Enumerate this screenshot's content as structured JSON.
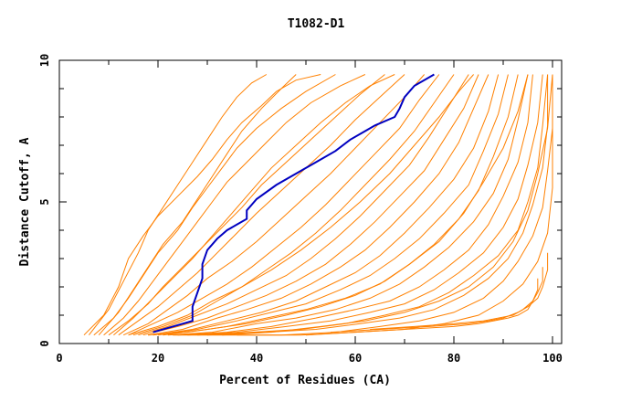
{
  "chart_data": {
    "type": "line",
    "title": "T1082-D1",
    "xlabel": "Percent of Residues (CA)",
    "ylabel": "Distance Cutoff, A",
    "xlim": [
      0,
      100
    ],
    "ylim": [
      0,
      10
    ],
    "x_ticks": [
      "0",
      "20",
      "40",
      "60",
      "80",
      "100"
    ],
    "y_ticks": [
      "0",
      "5",
      "10"
    ],
    "grid": false,
    "colors": {
      "background_series": "#ff8000",
      "highlight_series": "#0000c0",
      "axes": "#000000"
    },
    "series": [
      {
        "role": "highlight",
        "x": [
          19,
          23,
          27,
          27,
          28,
          29,
          29,
          30,
          32,
          34,
          36,
          38,
          38,
          39,
          40,
          44,
          48,
          52,
          56,
          59,
          62,
          64,
          68,
          69,
          70,
          72,
          76
        ],
        "y": [
          0.4,
          0.6,
          0.8,
          1.3,
          1.8,
          2.3,
          2.8,
          3.3,
          3.7,
          4.0,
          4.2,
          4.4,
          4.7,
          4.9,
          5.1,
          5.6,
          6.0,
          6.4,
          6.8,
          7.2,
          7.5,
          7.7,
          8.0,
          8.3,
          8.7,
          9.1,
          9.5
        ]
      },
      {
        "role": "background",
        "x": [
          5,
          9,
          12,
          14,
          17,
          20,
          24,
          28,
          31,
          34,
          37,
          41,
          44,
          48,
          53
        ],
        "y": [
          0.3,
          1.0,
          2.0,
          3.0,
          3.8,
          4.5,
          5.2,
          5.9,
          6.5,
          7.2,
          7.8,
          8.4,
          8.9,
          9.3,
          9.5
        ]
      },
      {
        "role": "background",
        "x": [
          7,
          11,
          14,
          17,
          20,
          24,
          27,
          30,
          33,
          36,
          40,
          45,
          50,
          56
        ],
        "y": [
          0.3,
          0.9,
          1.6,
          2.4,
          3.2,
          4.0,
          4.8,
          5.5,
          6.2,
          6.9,
          7.6,
          8.3,
          8.9,
          9.5
        ]
      },
      {
        "role": "background",
        "x": [
          9,
          13,
          16,
          19,
          22,
          25,
          28,
          31,
          34,
          38,
          42,
          46,
          51,
          57,
          62
        ],
        "y": [
          0.3,
          0.9,
          1.5,
          2.2,
          2.9,
          3.6,
          4.3,
          5.0,
          5.7,
          6.4,
          7.1,
          7.8,
          8.5,
          9.1,
          9.5
        ]
      },
      {
        "role": "background",
        "x": [
          10,
          14,
          18,
          21,
          25,
          29,
          33,
          37,
          41,
          46,
          51,
          56,
          61,
          66
        ],
        "y": [
          0.3,
          0.8,
          1.4,
          2.0,
          2.7,
          3.4,
          4.1,
          4.8,
          5.6,
          6.4,
          7.2,
          8.0,
          8.8,
          9.5
        ]
      },
      {
        "role": "background",
        "x": [
          12,
          16,
          20,
          24,
          28,
          32,
          36,
          40,
          45,
          50,
          55,
          60,
          65,
          70
        ],
        "y": [
          0.3,
          0.8,
          1.3,
          1.9,
          2.5,
          3.2,
          3.9,
          4.6,
          5.4,
          6.2,
          7.0,
          7.9,
          8.7,
          9.5
        ]
      },
      {
        "role": "background",
        "x": [
          13,
          18,
          22,
          26,
          30,
          35,
          40,
          45,
          50,
          55,
          60,
          65,
          70,
          74
        ],
        "y": [
          0.3,
          0.7,
          1.2,
          1.7,
          2.3,
          2.9,
          3.6,
          4.4,
          5.2,
          6.0,
          6.9,
          7.8,
          8.7,
          9.5
        ]
      },
      {
        "role": "background",
        "x": [
          14,
          19,
          24,
          29,
          34,
          39,
          44,
          49,
          54,
          59,
          64,
          69,
          73,
          77
        ],
        "y": [
          0.3,
          0.7,
          1.1,
          1.6,
          2.1,
          2.7,
          3.4,
          4.1,
          4.9,
          5.8,
          6.7,
          7.6,
          8.6,
          9.5
        ]
      },
      {
        "role": "background",
        "x": [
          15,
          21,
          27,
          32,
          37,
          42,
          47,
          52,
          57,
          62,
          67,
          72,
          76,
          80
        ],
        "y": [
          0.3,
          0.6,
          1.0,
          1.5,
          2.0,
          2.6,
          3.2,
          3.9,
          4.7,
          5.6,
          6.5,
          7.5,
          8.5,
          9.5
        ]
      },
      {
        "role": "background",
        "x": [
          16,
          22,
          28,
          34,
          40,
          46,
          51,
          56,
          61,
          66,
          71,
          75,
          79,
          83
        ],
        "y": [
          0.3,
          0.6,
          1.0,
          1.4,
          1.9,
          2.4,
          3.0,
          3.7,
          4.5,
          5.4,
          6.3,
          7.3,
          8.4,
          9.5
        ]
      },
      {
        "role": "background",
        "x": [
          17,
          24,
          30,
          36,
          42,
          48,
          54,
          59,
          64,
          69,
          74,
          78,
          82,
          85
        ],
        "y": [
          0.3,
          0.6,
          0.9,
          1.3,
          1.7,
          2.2,
          2.8,
          3.5,
          4.3,
          5.2,
          6.1,
          7.2,
          8.3,
          9.5
        ]
      },
      {
        "role": "background",
        "x": [
          18,
          25,
          32,
          38,
          45,
          51,
          57,
          62,
          67,
          72,
          77,
          81,
          84,
          87
        ],
        "y": [
          0.3,
          0.5,
          0.9,
          1.2,
          1.6,
          2.1,
          2.7,
          3.3,
          4.1,
          5.0,
          6.0,
          7.1,
          8.3,
          9.5
        ]
      },
      {
        "role": "background",
        "x": [
          19,
          27,
          34,
          41,
          48,
          54,
          60,
          65,
          70,
          75,
          80,
          84,
          87,
          89
        ],
        "y": [
          0.3,
          0.5,
          0.8,
          1.1,
          1.5,
          2.0,
          2.5,
          3.1,
          3.9,
          4.8,
          5.8,
          6.9,
          8.2,
          9.5
        ]
      },
      {
        "role": "background",
        "x": [
          20,
          28,
          36,
          43,
          50,
          57,
          63,
          68,
          73,
          78,
          83,
          86,
          89,
          91
        ],
        "y": [
          0.3,
          0.5,
          0.8,
          1.1,
          1.4,
          1.9,
          2.4,
          3.0,
          3.7,
          4.6,
          5.6,
          6.8,
          8.1,
          9.5
        ]
      },
      {
        "role": "background",
        "x": [
          21,
          30,
          38,
          46,
          53,
          60,
          66,
          71,
          76,
          81,
          85,
          88,
          91,
          93
        ],
        "y": [
          0.3,
          0.5,
          0.7,
          1.0,
          1.3,
          1.7,
          2.2,
          2.8,
          3.5,
          4.4,
          5.4,
          6.6,
          8.0,
          9.5
        ]
      },
      {
        "role": "background",
        "x": [
          22,
          31,
          40,
          48,
          56,
          63,
          69,
          74,
          79,
          84,
          88,
          91,
          93,
          95
        ],
        "y": [
          0.3,
          0.4,
          0.7,
          0.9,
          1.2,
          1.6,
          2.1,
          2.7,
          3.4,
          4.3,
          5.3,
          6.5,
          7.9,
          9.5
        ]
      },
      {
        "role": "background",
        "x": [
          24,
          34,
          43,
          52,
          60,
          67,
          73,
          78,
          83,
          87,
          90,
          93,
          95,
          96
        ],
        "y": [
          0.3,
          0.4,
          0.6,
          0.9,
          1.2,
          1.5,
          2.0,
          2.6,
          3.3,
          4.2,
          5.2,
          6.4,
          7.8,
          9.5
        ]
      },
      {
        "role": "background",
        "x": [
          26,
          36,
          46,
          55,
          63,
          70,
          76,
          81,
          86,
          90,
          93,
          95,
          97,
          98
        ],
        "y": [
          0.3,
          0.4,
          0.6,
          0.8,
          1.1,
          1.4,
          1.9,
          2.5,
          3.2,
          4.1,
          5.1,
          6.3,
          7.8,
          9.5
        ]
      },
      {
        "role": "background",
        "x": [
          28,
          39,
          49,
          58,
          66,
          73,
          79,
          84,
          89,
          93,
          95,
          97,
          98,
          99
        ],
        "y": [
          0.3,
          0.4,
          0.5,
          0.7,
          1.0,
          1.3,
          1.8,
          2.4,
          3.1,
          4.0,
          5.0,
          6.2,
          7.7,
          9.5
        ]
      },
      {
        "role": "background",
        "x": [
          30,
          42,
          52,
          61,
          69,
          76,
          82,
          87,
          91,
          94,
          96,
          98,
          99,
          99
        ],
        "y": [
          0.3,
          0.4,
          0.5,
          0.7,
          0.9,
          1.2,
          1.7,
          2.3,
          3.0,
          3.9,
          4.9,
          6.2,
          7.7,
          9.5
        ]
      },
      {
        "role": "background",
        "x": [
          33,
          45,
          56,
          65,
          73,
          80,
          86,
          90,
          93,
          96,
          98,
          99,
          100,
          100
        ],
        "y": [
          0.3,
          0.3,
          0.4,
          0.6,
          0.8,
          1.1,
          1.6,
          2.2,
          2.9,
          3.8,
          4.8,
          6.1,
          7.6,
          9.5
        ]
      },
      {
        "role": "background",
        "x": [
          36,
          49,
          60,
          70,
          78,
          85,
          90,
          94,
          97,
          99,
          100,
          100
        ],
        "y": [
          0.3,
          0.3,
          0.4,
          0.5,
          0.7,
          1.0,
          1.5,
          2.1,
          2.9,
          3.9,
          5.5,
          9.5
        ]
      },
      {
        "role": "background",
        "x": [
          6,
          10,
          13,
          16,
          18,
          21,
          24,
          27,
          30,
          33,
          36,
          39,
          42
        ],
        "y": [
          0.3,
          1.2,
          2.2,
          3.2,
          4.0,
          4.8,
          5.6,
          6.4,
          7.2,
          8.0,
          8.7,
          9.2,
          9.5
        ]
      },
      {
        "role": "background",
        "x": [
          8,
          12,
          15,
          18,
          21,
          25,
          28,
          31,
          34,
          37,
          41,
          45,
          48
        ],
        "y": [
          0.3,
          1.1,
          1.9,
          2.7,
          3.5,
          4.3,
          5.1,
          5.9,
          6.7,
          7.5,
          8.3,
          9.0,
          9.5
        ]
      },
      {
        "role": "background",
        "x": [
          11,
          15,
          19,
          23,
          27,
          31,
          35,
          39,
          43,
          48,
          53,
          58,
          63,
          68
        ],
        "y": [
          0.3,
          0.9,
          1.6,
          2.3,
          3.0,
          3.8,
          4.6,
          5.4,
          6.2,
          7.0,
          7.8,
          8.5,
          9.1,
          9.5
        ]
      },
      {
        "role": "background",
        "x": [
          14,
          20,
          26,
          31,
          37,
          43,
          49,
          55,
          61,
          67,
          72,
          77,
          81,
          84
        ],
        "y": [
          0.3,
          0.6,
          1.0,
          1.5,
          2.0,
          2.6,
          3.3,
          4.1,
          5.0,
          6.0,
          7.0,
          8.0,
          8.9,
          9.5
        ]
      },
      {
        "role": "background",
        "x": [
          18,
          26,
          34,
          42,
          50,
          58,
          65,
          71,
          77,
          82,
          86,
          90,
          93,
          95
        ],
        "y": [
          0.3,
          0.4,
          0.6,
          0.9,
          1.2,
          1.6,
          2.1,
          2.8,
          3.6,
          4.6,
          5.7,
          6.9,
          8.2,
          9.5
        ]
      },
      {
        "role": "background",
        "x": [
          23,
          33,
          43,
          53,
          62,
          70,
          77,
          83,
          88,
          92,
          95,
          97,
          99,
          100
        ],
        "y": [
          0.3,
          0.3,
          0.4,
          0.6,
          0.8,
          1.1,
          1.5,
          2.0,
          2.7,
          3.6,
          4.7,
          6.0,
          7.6,
          9.5
        ]
      },
      {
        "role": "background",
        "x": [
          50,
          60,
          70,
          80,
          85,
          88,
          91,
          93,
          95,
          96,
          97,
          97
        ],
        "y": [
          0.3,
          0.4,
          0.5,
          0.6,
          0.7,
          0.8,
          0.9,
          1.0,
          1.2,
          1.5,
          1.9,
          2.3
        ]
      },
      {
        "role": "background",
        "x": [
          55,
          65,
          75,
          83,
          87,
          90,
          93,
          95,
          97,
          98,
          99,
          99
        ],
        "y": [
          0.4,
          0.5,
          0.6,
          0.7,
          0.8,
          0.9,
          1.1,
          1.3,
          1.6,
          2.0,
          2.6,
          3.2
        ]
      },
      {
        "role": "background",
        "x": [
          63,
          72,
          80,
          86,
          89,
          92,
          94,
          96,
          97,
          98,
          98
        ],
        "y": [
          0.5,
          0.6,
          0.7,
          0.8,
          0.9,
          1.0,
          1.2,
          1.5,
          1.8,
          2.2,
          2.7
        ]
      }
    ]
  }
}
